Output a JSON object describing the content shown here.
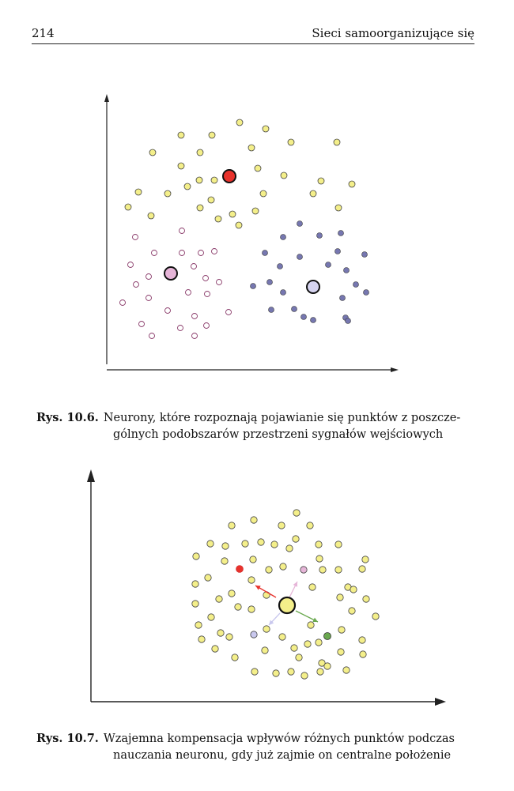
{
  "header": {
    "page_number": "214",
    "running_head": "Sieci samoorganizujące się"
  },
  "figure_10_6": {
    "label": "Rys. 10.6.",
    "caption_line1": "Neurony, które rozpoznają pojawianie się punktów z poszcze-",
    "caption_line2": "gólnych podobszarów przestrzeni sygnałów wejściowych",
    "colors": {
      "yellow": "#f4ef8a",
      "red": "#e8322c",
      "pink": "#e6b5d8",
      "purple": "#7677b0",
      "lavender": "#d6d4f0"
    }
  },
  "figure_10_7": {
    "label": "Rys. 10.7.",
    "caption_line1": "Wzajemna kompensacja wpływów różnych punktów podczas",
    "caption_line2": "nauczania neuronu, gdy już zajmie on centralne położenie",
    "colors": {
      "yellow": "#f4ef8a",
      "red": "#e8322c",
      "pink": "#e6b5d8",
      "lavender": "#c9c8ee",
      "green": "#6aa84f"
    }
  }
}
